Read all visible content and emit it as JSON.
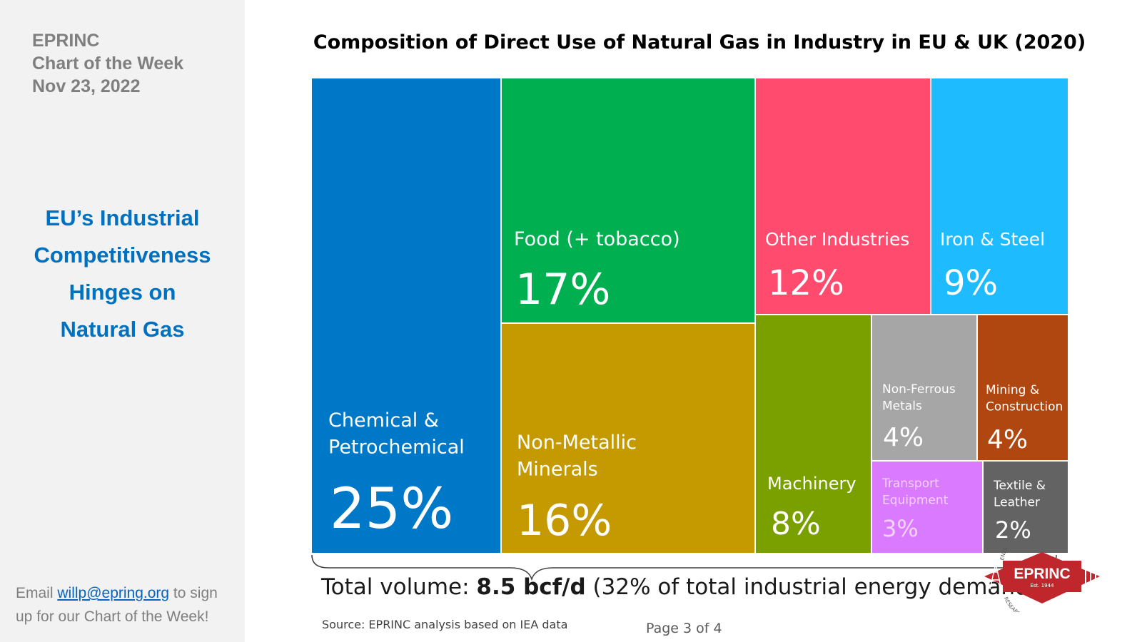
{
  "sidebar": {
    "brand": "EPRINC",
    "series": "Chart of the Week",
    "date": "Nov 23, 2022",
    "headline": [
      "EU’s Industrial",
      "Competitiveness",
      "Hinges on",
      "Natural Gas"
    ],
    "signup_prefix": "Email",
    "signup_email": "willp@epring.org",
    "signup_suffix": " to sign",
    "signup_line2": "up for our Chart of the Week!"
  },
  "chart_data": {
    "type": "treemap",
    "title": "Composition of Direct Use of Natural Gas in Industry in EU & UK (2020)",
    "unit": "%",
    "items": [
      {
        "label": "Chemical & Petrochemical",
        "value": 25,
        "display": "25%",
        "color": "#0078c8"
      },
      {
        "label": "Food (+ tobacco)",
        "value": 17,
        "display": "17%",
        "color": "#00b050"
      },
      {
        "label": "Non-Metallic Minerals",
        "value": 16,
        "display": "16%",
        "color": "#c49a00"
      },
      {
        "label": "Other Industries",
        "value": 12,
        "display": "12%",
        "color": "#ff4b6e"
      },
      {
        "label": "Iron & Steel",
        "value": 9,
        "display": "9%",
        "color": "#1ebcff"
      },
      {
        "label": "Machinery",
        "value": 8,
        "display": "8%",
        "color": "#7aa000"
      },
      {
        "label": "Non-Ferrous Metals",
        "value": 4,
        "display": "4%",
        "color": "#a6a6a6"
      },
      {
        "label": "Mining & Construction",
        "value": 4,
        "display": "4%",
        "color": "#b14710"
      },
      {
        "label": "Transport Equipment",
        "value": 3,
        "display": "3%",
        "color": "#da7bff"
      },
      {
        "label": "Textile & Leather",
        "value": 2,
        "display": "2%",
        "color": "#636363"
      }
    ]
  },
  "footer": {
    "total_prefix": "Total volume: ",
    "total_value": "8.5 bcf/d",
    "total_suffix": " (32% of total industrial energy demand)",
    "source": "Source: EPRINC analysis based on IEA data",
    "page": "Page 3 of 4"
  },
  "logo": {
    "name": "EPRINC",
    "est": "Est. 1944",
    "arc_top": "ENERGY POLICY",
    "arc_bottom": "RESEARCH FOUNDATION INC.",
    "color": "#c0272d"
  }
}
